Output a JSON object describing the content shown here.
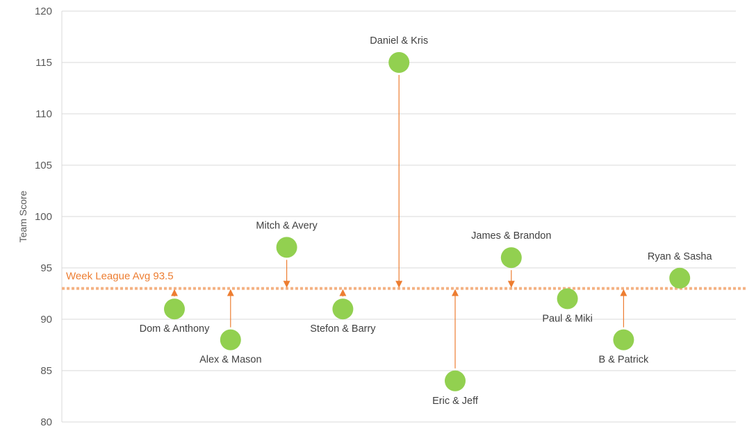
{
  "chart_data": {
    "type": "scatter",
    "ylabel": "Team Score",
    "ylim": [
      80,
      120
    ],
    "yticks": [
      80,
      85,
      90,
      95,
      100,
      105,
      110,
      115,
      120
    ],
    "grid": true,
    "reference_line": {
      "value": 93,
      "label": "Week League Avg 93.5",
      "color": "#F4B183"
    },
    "marker_color": "#92D050",
    "arrow_color": "#ED7D31",
    "series": [
      {
        "points": [
          {
            "x": 1,
            "y": 91,
            "label": "Dom & Anthony",
            "label_pos": "below"
          },
          {
            "x": 2,
            "y": 88,
            "label": "Alex & Mason",
            "label_pos": "below"
          },
          {
            "x": 3,
            "y": 97,
            "label": "Mitch & Avery",
            "label_pos": "above"
          },
          {
            "x": 4,
            "y": 91,
            "label": "Stefon & Barry",
            "label_pos": "below"
          },
          {
            "x": 5,
            "y": 115,
            "label": "Daniel & Kris",
            "label_pos": "above"
          },
          {
            "x": 6,
            "y": 84,
            "label": "Eric & Jeff",
            "label_pos": "below"
          },
          {
            "x": 7,
            "y": 96,
            "label": "James & Brandon",
            "label_pos": "above"
          },
          {
            "x": 8,
            "y": 92,
            "label": "Paul & Miki",
            "label_pos": "below"
          },
          {
            "x": 9,
            "y": 88,
            "label": "B & Patrick",
            "label_pos": "below"
          },
          {
            "x": 10,
            "y": 94,
            "label": "Ryan & Sasha",
            "label_pos": "above"
          }
        ]
      }
    ]
  }
}
